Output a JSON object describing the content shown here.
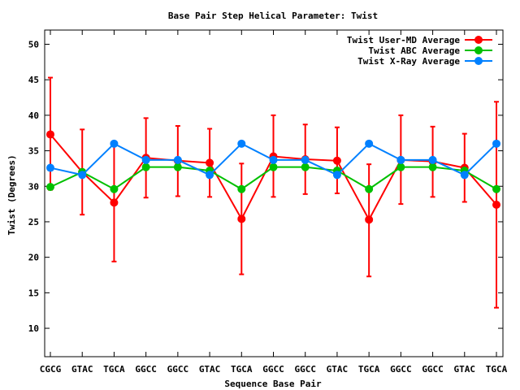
{
  "chart_data": {
    "type": "line",
    "title": "Base Pair Step Helical Parameter: Twist",
    "xlabel": "Sequence Base Pair",
    "ylabel": "Twist (Degrees)",
    "ylim": [
      6,
      52
    ],
    "yticks": [
      10,
      15,
      20,
      25,
      30,
      35,
      40,
      45,
      50
    ],
    "categories": [
      "CGCG",
      "GTAC",
      "TGCA",
      "GGCC",
      "GGCC",
      "GTAC",
      "TGCA",
      "GGCC",
      "GGCC",
      "GTAC",
      "TGCA",
      "GGCC",
      "GGCC",
      "GTAC",
      "TGCA"
    ],
    "grid": false,
    "legend_position": "top-right",
    "series": [
      {
        "name": "Twist User-MD Average",
        "color": "#ff0000",
        "values": [
          37.3,
          32.0,
          27.7,
          34.0,
          33.6,
          33.3,
          25.4,
          34.2,
          33.8,
          33.6,
          25.3,
          33.7,
          33.5,
          32.6,
          27.4
        ],
        "error_low": [
          29.5,
          26.0,
          19.4,
          28.4,
          28.6,
          28.5,
          17.6,
          28.5,
          28.9,
          29.0,
          17.3,
          27.5,
          28.5,
          27.8,
          12.9
        ],
        "error_high": [
          45.3,
          38.0,
          36.0,
          39.6,
          38.5,
          38.1,
          33.2,
          40.0,
          38.7,
          38.3,
          33.1,
          40.0,
          38.4,
          37.4,
          41.9
        ]
      },
      {
        "name": "Twist ABC Average",
        "color": "#00c000",
        "values": [
          29.9,
          32.0,
          29.6,
          32.7,
          32.7,
          32.2,
          29.6,
          32.7,
          32.7,
          32.2,
          29.6,
          32.7,
          32.7,
          32.2,
          29.6
        ]
      },
      {
        "name": "Twist X-Ray Average",
        "color": "#0080ff",
        "values": [
          32.6,
          31.6,
          36.0,
          33.7,
          33.7,
          31.6,
          36.0,
          33.7,
          33.7,
          31.6,
          36.0,
          33.7,
          33.7,
          31.6,
          36.0
        ]
      }
    ]
  }
}
